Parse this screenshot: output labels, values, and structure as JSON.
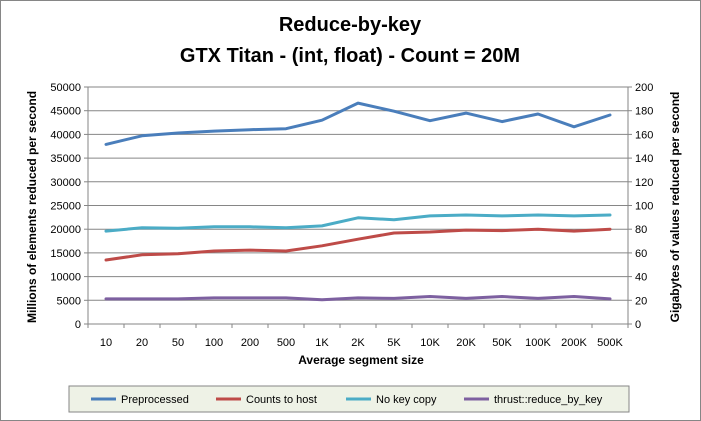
{
  "chart_data": {
    "type": "line",
    "title_lines": [
      "Reduce-by-key",
      "GTX Titan - (int, float) - Count = 20M"
    ],
    "xlabel": "Average segment size",
    "ylabel": "Millions of elements reduced per second",
    "y2label": "Gigabytes of values reduced per second",
    "categories": [
      "10",
      "20",
      "50",
      "100",
      "200",
      "500",
      "1K",
      "2K",
      "5K",
      "10K",
      "20K",
      "50K",
      "100K",
      "200K",
      "500K"
    ],
    "ylim": [
      0,
      50000
    ],
    "yticks": [
      0,
      5000,
      10000,
      15000,
      20000,
      25000,
      30000,
      35000,
      40000,
      45000,
      50000
    ],
    "y2lim": [
      0,
      200
    ],
    "y2ticks": [
      0,
      20,
      40,
      60,
      80,
      100,
      120,
      140,
      160,
      180,
      200
    ],
    "grid": true,
    "legend_position": "bottom",
    "series": [
      {
        "name": "Preprocessed",
        "color": "#4a7ebb",
        "values": [
          37900,
          39700,
          40300,
          40700,
          41000,
          41200,
          43000,
          46600,
          44900,
          42900,
          44500,
          42700,
          44300,
          41600,
          44100
        ]
      },
      {
        "name": "Counts to host",
        "color": "#be4b48",
        "values": [
          13500,
          14600,
          14800,
          15400,
          15600,
          15400,
          16500,
          17900,
          19200,
          19400,
          19800,
          19700,
          20000,
          19600,
          20000
        ]
      },
      {
        "name": "No key copy",
        "color": "#4bacc6",
        "values": [
          19600,
          20300,
          20200,
          20500,
          20500,
          20300,
          20700,
          22400,
          22000,
          22800,
          23000,
          22800,
          23000,
          22800,
          23000
        ]
      },
      {
        "name": "thrust::reduce_by_key",
        "color": "#7d60a0",
        "values": [
          5300,
          5300,
          5300,
          5500,
          5500,
          5500,
          5100,
          5500,
          5400,
          5800,
          5400,
          5800,
          5400,
          5800,
          5300
        ]
      }
    ]
  }
}
